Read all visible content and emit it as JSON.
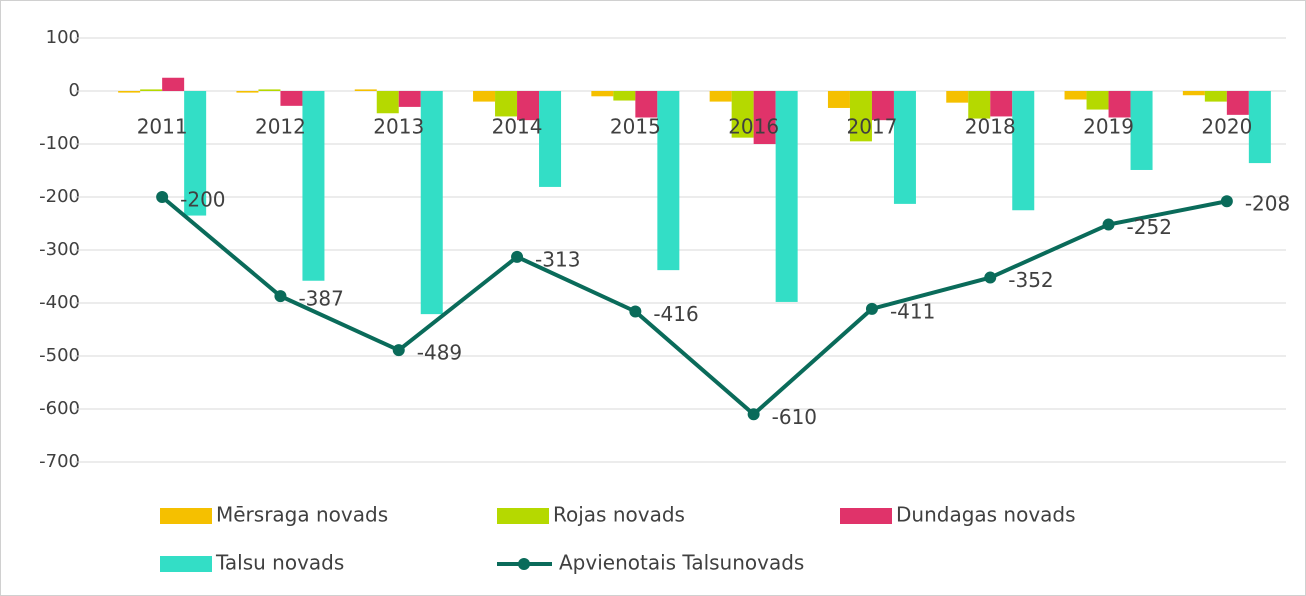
{
  "chart_data": {
    "type": "bar",
    "categories": [
      "2011",
      "2012",
      "2013",
      "2014",
      "2015",
      "2016",
      "2017",
      "2018",
      "2019",
      "2020"
    ],
    "series": [
      {
        "name": "Mērsraga novads",
        "color": "#f5c000",
        "values": [
          -3,
          -3,
          3,
          -20,
          -10,
          -20,
          -32,
          -22,
          -16,
          -8
        ]
      },
      {
        "name": "Rojas novads",
        "color": "#b5d900",
        "values": [
          3,
          3,
          -42,
          -48,
          -18,
          -88,
          -95,
          -52,
          -35,
          -20
        ]
      },
      {
        "name": "Dundagas novads",
        "color": "#e0336a",
        "values": [
          25,
          -28,
          -30,
          -55,
          -50,
          -100,
          -55,
          -48,
          -50,
          -45
        ]
      },
      {
        "name": "Talsu novads",
        "color": "#33dec6",
        "values": [
          -235,
          -358,
          -421,
          -181,
          -338,
          -398,
          -213,
          -225,
          -149,
          -136
        ]
      },
      {
        "name": "Apvienotais Talsunovads",
        "color": "#0a6b5a",
        "type": "line",
        "values": [
          -200,
          -387,
          -489,
          -313,
          -416,
          -610,
          -411,
          -352,
          -252,
          -208
        ]
      }
    ],
    "ylim": [
      -700,
      100
    ],
    "yticks": [
      100,
      0,
      -100,
      -200,
      -300,
      -400,
      -500,
      -600,
      -700
    ],
    "grid": true,
    "legend": "bottom"
  }
}
